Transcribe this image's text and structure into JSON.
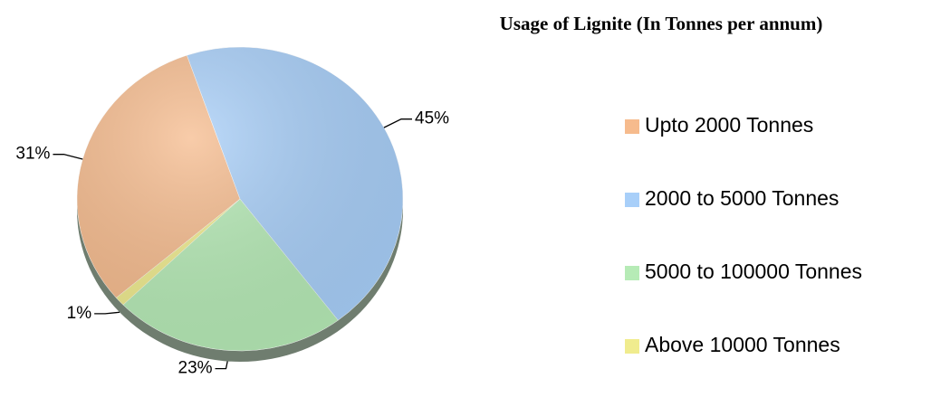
{
  "chart_data": {
    "type": "pie",
    "title": "Usage of Lignite (In Tonnes per annum)",
    "categories": [
      "Upto 2000 Tonnes",
      "2000 to 5000 Tonnes",
      "5000 to 100000 Tonnes",
      "Above 10000 Tonnes"
    ],
    "values": [
      31,
      45,
      23,
      1
    ],
    "value_labels": [
      "31%",
      "45%",
      "23%",
      "1%"
    ],
    "colors": [
      "#f6bb8d",
      "#a8cff9",
      "#b6ebb6",
      "#f0ec8e"
    ],
    "legend": "right"
  }
}
